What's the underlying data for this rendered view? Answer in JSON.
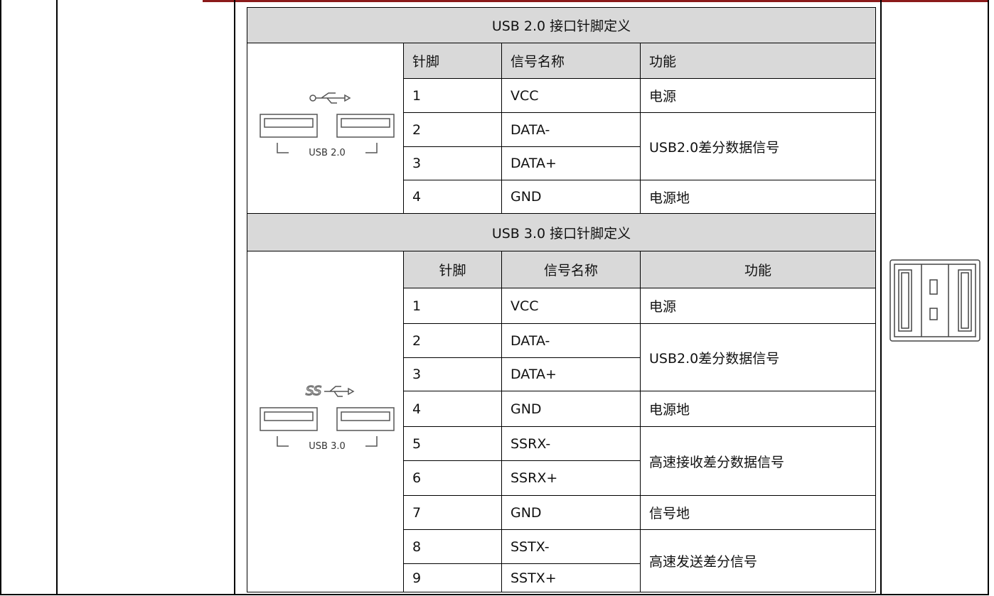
{
  "usb2": {
    "title": "USB 2.0 接口针脚定义",
    "image_label": "USB 2.0",
    "header": [
      "针脚",
      "信号名称",
      "功能"
    ],
    "pins": [
      [
        "1",
        "VCC"
      ],
      [
        "2",
        "DATA-"
      ],
      [
        "3",
        "DATA+"
      ],
      [
        "4",
        "GND"
      ]
    ],
    "functions": [
      "电源",
      "USB2.0差分数据信号",
      "电源地"
    ]
  },
  "usb3": {
    "title": "USB 3.0 接口针脚定义",
    "image_label": "USB 3.0",
    "header": [
      "针脚",
      "信号名称",
      "功能"
    ],
    "pins": [
      [
        "1",
        "VCC"
      ],
      [
        "2",
        "DATA-"
      ],
      [
        "3",
        "DATA+"
      ],
      [
        "4",
        "GND"
      ],
      [
        "5",
        "SSRX-"
      ],
      [
        "6",
        "SSRX+"
      ],
      [
        "7",
        "GND"
      ],
      [
        "8",
        "SSTX-"
      ],
      [
        "9",
        "SSTX+"
      ]
    ],
    "functions": [
      "电源",
      "USB2.0差分数据信号",
      "电源地",
      "高速接收差分数据信号",
      "信号地",
      "高速发送差分信号"
    ]
  }
}
